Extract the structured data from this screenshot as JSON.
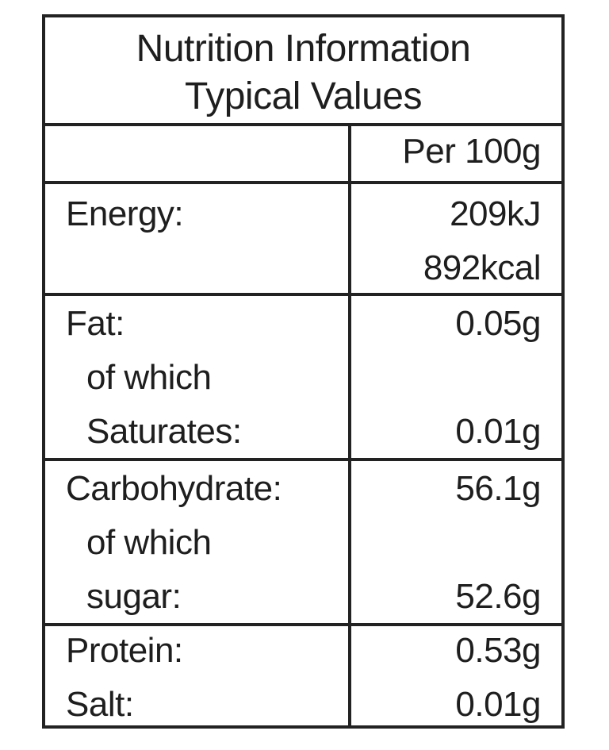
{
  "header": {
    "title": "Nutrition Information",
    "subtitle": "Typical Values"
  },
  "column_header": "Per 100g",
  "rows": [
    {
      "label": "Energy:",
      "values": [
        "209kJ",
        "892kcal"
      ]
    },
    {
      "label": "Fat:",
      "value": "0.05g",
      "sub_label_1": "of which",
      "sub_label_2": "Saturates:",
      "sub_value": "0.01g"
    },
    {
      "label": "Carbohydrate:",
      "value": "56.1g",
      "sub_label_1": "of which",
      "sub_label_2": "sugar:",
      "sub_value": "52.6g"
    },
    {
      "label": "Protein:",
      "value": "0.53g"
    },
    {
      "label": "Salt:",
      "value": "0.01g"
    }
  ]
}
